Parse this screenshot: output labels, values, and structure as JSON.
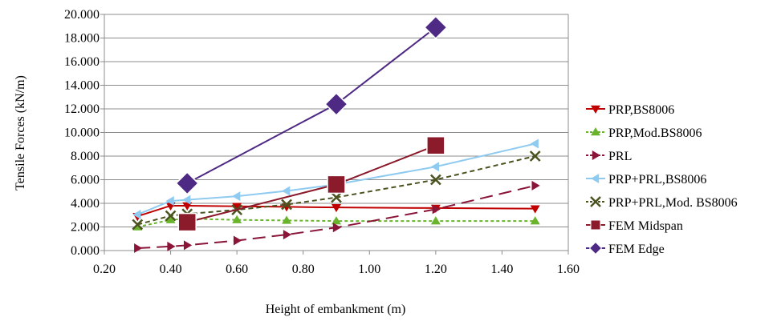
{
  "chart_data": {
    "type": "line",
    "title": "",
    "xlabel": "Height of embankment (m)",
    "ylabel": "Tensile Forces (kN/m)",
    "xlim": [
      0.2,
      1.6
    ],
    "ylim": [
      0,
      20
    ],
    "x_ticks": [
      "0.20",
      "0.40",
      "0.60",
      "0.80",
      "1.00",
      "1.20",
      "1.40",
      "1.60"
    ],
    "y_ticks": [
      "0.000",
      "2.000",
      "4.000",
      "6.000",
      "8.000",
      "10.000",
      "12.000",
      "14.000",
      "16.000",
      "18.000",
      "20.000"
    ],
    "grid": "horizontal",
    "legend_position": "right",
    "series": [
      {
        "name": "PRP,BS8006",
        "color": "#C00000",
        "marker": "triangle-down",
        "dash": "solid",
        "x": [
          0.3,
          0.4,
          0.45,
          0.6,
          0.75,
          0.9,
          1.2,
          1.5
        ],
        "y": [
          2.9,
          3.8,
          3.8,
          3.75,
          3.7,
          3.65,
          3.6,
          3.55
        ]
      },
      {
        "name": "PRP,Mod.BS8006",
        "color": "#6AB42D",
        "marker": "triangle-up",
        "dash": "short",
        "x": [
          0.3,
          0.4,
          0.45,
          0.6,
          0.75,
          0.9,
          1.2,
          1.5
        ],
        "y": [
          2.0,
          2.6,
          2.7,
          2.6,
          2.55,
          2.5,
          2.5,
          2.5
        ]
      },
      {
        "name": "PRL",
        "color": "#8B1538",
        "marker": "triangle-right",
        "dash": "long",
        "x": [
          0.3,
          0.4,
          0.45,
          0.6,
          0.75,
          0.9,
          1.2,
          1.5
        ],
        "y": [
          0.2,
          0.35,
          0.45,
          0.85,
          1.35,
          1.95,
          3.5,
          5.5
        ]
      },
      {
        "name": "PRP+PRL,BS8006",
        "color": "#8FCBF0",
        "marker": "triangle-left",
        "dash": "solid",
        "x": [
          0.3,
          0.4,
          0.45,
          0.6,
          0.75,
          0.9,
          1.2,
          1.5
        ],
        "y": [
          3.05,
          4.2,
          4.3,
          4.6,
          5.05,
          5.6,
          7.1,
          9.05
        ]
      },
      {
        "name": "PRP+PRL,Mod. BS8006",
        "color": "#4B5320",
        "marker": "x",
        "dash": "dash",
        "x": [
          0.3,
          0.4,
          0.45,
          0.6,
          0.75,
          0.9,
          1.2,
          1.5
        ],
        "y": [
          2.2,
          2.95,
          3.1,
          3.45,
          3.9,
          4.5,
          6.0,
          8.0
        ]
      },
      {
        "name": "FEM Midspan",
        "color": "#8B1A2B",
        "marker": "square",
        "dash": "solid",
        "x": [
          0.45,
          0.9,
          1.2
        ],
        "y": [
          2.4,
          5.6,
          8.9
        ]
      },
      {
        "name": "FEM Edge",
        "color": "#4E2A84",
        "marker": "diamond",
        "dash": "solid",
        "x": [
          0.45,
          0.9,
          1.2
        ],
        "y": [
          5.7,
          12.4,
          18.9
        ]
      }
    ]
  }
}
